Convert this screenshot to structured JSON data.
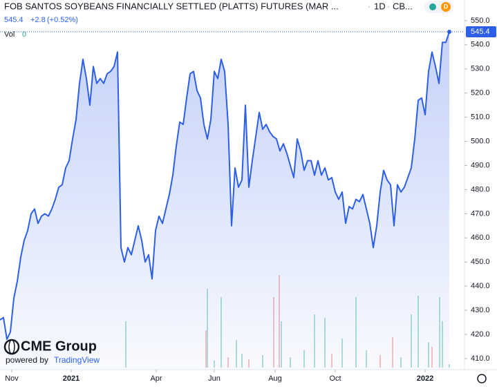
{
  "chart_data": {
    "type": "area",
    "title": "FOB SANTOS SOYBEANS FINANCIALLY SETTLED (PLATTS) FUTURES (MAR ...",
    "interval": "1D",
    "exchange": "CB...",
    "change": "+2.8",
    "change_pct": "(+0.52%)",
    "volume_label": "Vol",
    "volume_value": 0,
    "logo": "CME Group",
    "powered_by": "powered by",
    "provider": "TradingView",
    "color": "#2d5ee8",
    "x": [
      0,
      1,
      2,
      3,
      4,
      5,
      6,
      7,
      8,
      9,
      10,
      11,
      12,
      13,
      14,
      15,
      16,
      17,
      18,
      19,
      20,
      21,
      22,
      23,
      24,
      25,
      26,
      27,
      28,
      29,
      30,
      31,
      32,
      33,
      34,
      35,
      36,
      37,
      38,
      39,
      40,
      41,
      42,
      43,
      44,
      45,
      46,
      47,
      48,
      49,
      50,
      51,
      52,
      53,
      54,
      55,
      56,
      57,
      58,
      59,
      60,
      61,
      62,
      63,
      64,
      65,
      66,
      67,
      68,
      69,
      70,
      71,
      72,
      73,
      74,
      75,
      76,
      77,
      78,
      79,
      80,
      81,
      82,
      83,
      84,
      85,
      86,
      87,
      88,
      89,
      90,
      91,
      92,
      93,
      94,
      95,
      96,
      97,
      98,
      99,
      100,
      101,
      102,
      103,
      104,
      105,
      106,
      107,
      108,
      109,
      110,
      111,
      112,
      113,
      114,
      115,
      116,
      117,
      118,
      119,
      120,
      121,
      122,
      123,
      124,
      125,
      126,
      127,
      128,
      129,
      130
    ],
    "values": [
      426,
      427,
      418,
      421,
      435,
      442,
      452,
      459,
      463,
      470,
      472,
      466,
      469,
      470,
      469,
      472,
      476,
      481,
      482,
      489,
      492,
      501,
      509,
      524,
      534,
      526,
      515,
      531,
      524,
      526,
      524,
      528,
      529,
      531,
      537,
      456,
      450,
      456,
      453,
      459,
      465,
      459,
      450,
      453,
      443,
      463,
      469,
      466,
      472,
      478,
      486,
      498,
      508,
      507,
      518,
      528,
      529,
      521,
      518,
      507,
      501,
      509,
      529,
      526,
      534,
      529,
      507,
      465,
      489,
      481,
      484,
      515,
      481,
      492,
      502,
      512,
      505,
      507,
      504,
      502,
      501,
      496,
      499,
      495,
      490,
      485,
      501,
      496,
      488,
      492,
      492,
      486,
      492,
      486,
      489,
      484,
      485,
      479,
      476,
      479,
      466,
      473,
      472,
      476,
      475,
      478,
      472,
      466,
      456,
      465,
      479,
      488,
      484,
      482,
      465,
      482,
      479,
      481,
      485,
      489,
      501,
      517,
      518,
      511,
      529,
      537,
      531,
      524,
      541,
      541,
      545.4
    ],
    "volume": {
      "x": [
        36.4,
        59.6,
        60,
        62,
        64,
        66,
        68.4,
        70,
        72,
        76,
        79.2,
        80.8,
        81.4,
        84,
        88,
        91,
        94,
        96,
        99,
        103,
        106,
        110,
        113.6,
        116,
        119,
        121,
        124,
        125,
        127.2,
        128,
        130
      ],
      "values": [
        67,
        54,
        114,
        10,
        102,
        15,
        40,
        20,
        12,
        18,
        102,
        134,
        67,
        15,
        25,
        77,
        72,
        20,
        42,
        102,
        25,
        18,
        44,
        15,
        77,
        104,
        37,
        30,
        102,
        67,
        5
      ],
      "colors": [
        "#26a69a",
        "#ef5350",
        "#26a69a",
        "#26a69a",
        "#26a69a",
        "#ef5350",
        "#26a69a",
        "#26a69a",
        "#ef5350",
        "#26a69a",
        "#ef5350",
        "#ef5350",
        "#26a69a",
        "#26a69a",
        "#26a69a",
        "#26a69a",
        "#26a69a",
        "#ef5350",
        "#26a69a",
        "#26a69a",
        "#26a69a",
        "#ef5350",
        "#ef5350",
        "#26a69a",
        "#26a69a",
        "#26a69a",
        "#26a69a",
        "#ef5350",
        "#26a69a",
        "#26a69a",
        "#26a69a"
      ],
      "ylim": [
        0,
        200
      ]
    },
    "xlim": [
      0,
      130
    ],
    "xticks": [
      {
        "value": 3.4,
        "label": "Nov"
      },
      {
        "value": 20.6,
        "label": "2021"
      },
      {
        "value": 45.2,
        "label": "Apr"
      },
      {
        "value": 62,
        "label": "Jun"
      },
      {
        "value": 79.6,
        "label": "Aug"
      },
      {
        "value": 97,
        "label": "Oct"
      },
      {
        "value": 123,
        "label": "2022"
      }
    ],
    "ylim": [
      405.4,
      555.7
    ],
    "yticks": [
      {
        "value": 410,
        "label": "410.0"
      },
      {
        "value": 420,
        "label": "420.0"
      },
      {
        "value": 430,
        "label": "430.0"
      },
      {
        "value": 440,
        "label": "440.0"
      },
      {
        "value": 450,
        "label": "450.0"
      },
      {
        "value": 460,
        "label": "460.0"
      },
      {
        "value": 470,
        "label": "470.0"
      },
      {
        "value": 480,
        "label": "480.0"
      },
      {
        "value": 490,
        "label": "490.0"
      },
      {
        "value": 500,
        "label": "500.0"
      },
      {
        "value": 510,
        "label": "510.0"
      },
      {
        "value": 520,
        "label": "520.0"
      },
      {
        "value": 530,
        "label": "530.0"
      },
      {
        "value": 540,
        "label": "540.0"
      },
      {
        "value": 550,
        "label": "550.0"
      }
    ]
  }
}
